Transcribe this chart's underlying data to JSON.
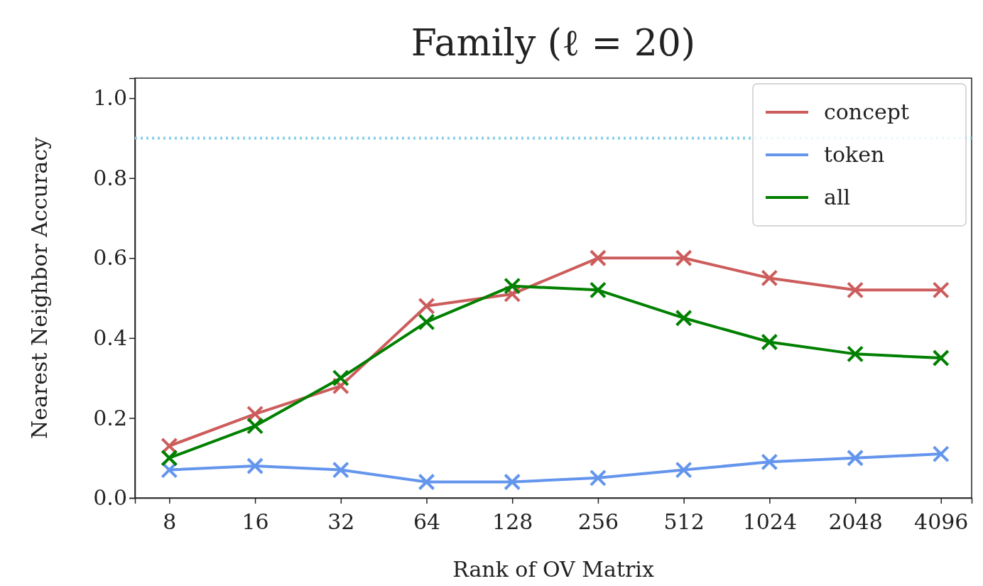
{
  "chart_data": {
    "type": "line",
    "title": "Family (ℓ = 20)",
    "xlabel": "Rank of OV Matrix",
    "ylabel": "Nearest Neighbor Accuracy",
    "x": [
      8,
      16,
      32,
      64,
      128,
      256,
      512,
      1024,
      2048,
      4096
    ],
    "log": "x",
    "xlim": [
      6.06,
      5250
    ],
    "xticks": [
      8,
      16,
      32,
      64,
      128,
      256,
      512,
      1024,
      2048,
      4096
    ],
    "ylim": [
      0,
      1.05
    ],
    "yticks": [
      {
        "value": 0,
        "label": "0.0"
      },
      {
        "value": 0.2,
        "label": "0.2"
      },
      {
        "value": 0.4,
        "label": "0.4"
      },
      {
        "value": 0.6,
        "label": "0.6"
      },
      {
        "value": 0.8,
        "label": "0.8"
      },
      {
        "value": 1,
        "label": "1.0"
      }
    ],
    "marker": "cross",
    "grid": false,
    "legend": "top right",
    "ref_lines": [
      {
        "axis": "y",
        "value": 0.9,
        "color": "#87ceeb",
        "line_style": "dotted"
      }
    ],
    "series": [
      {
        "name": "concept",
        "color": "#cd5c5c",
        "values": [
          0.13,
          0.21,
          0.28,
          0.48,
          0.51,
          0.6,
          0.6,
          0.55,
          0.52,
          0.52
        ]
      },
      {
        "name": "token",
        "color": "#6495ed",
        "values": [
          0.07,
          0.08,
          0.07,
          0.04,
          0.04,
          0.05,
          0.07,
          0.09,
          0.1,
          0.11
        ]
      },
      {
        "name": "all",
        "color": "#008000",
        "values": [
          0.1,
          0.18,
          0.3,
          0.44,
          0.53,
          0.52,
          0.45,
          0.39,
          0.36,
          0.35
        ]
      }
    ]
  }
}
